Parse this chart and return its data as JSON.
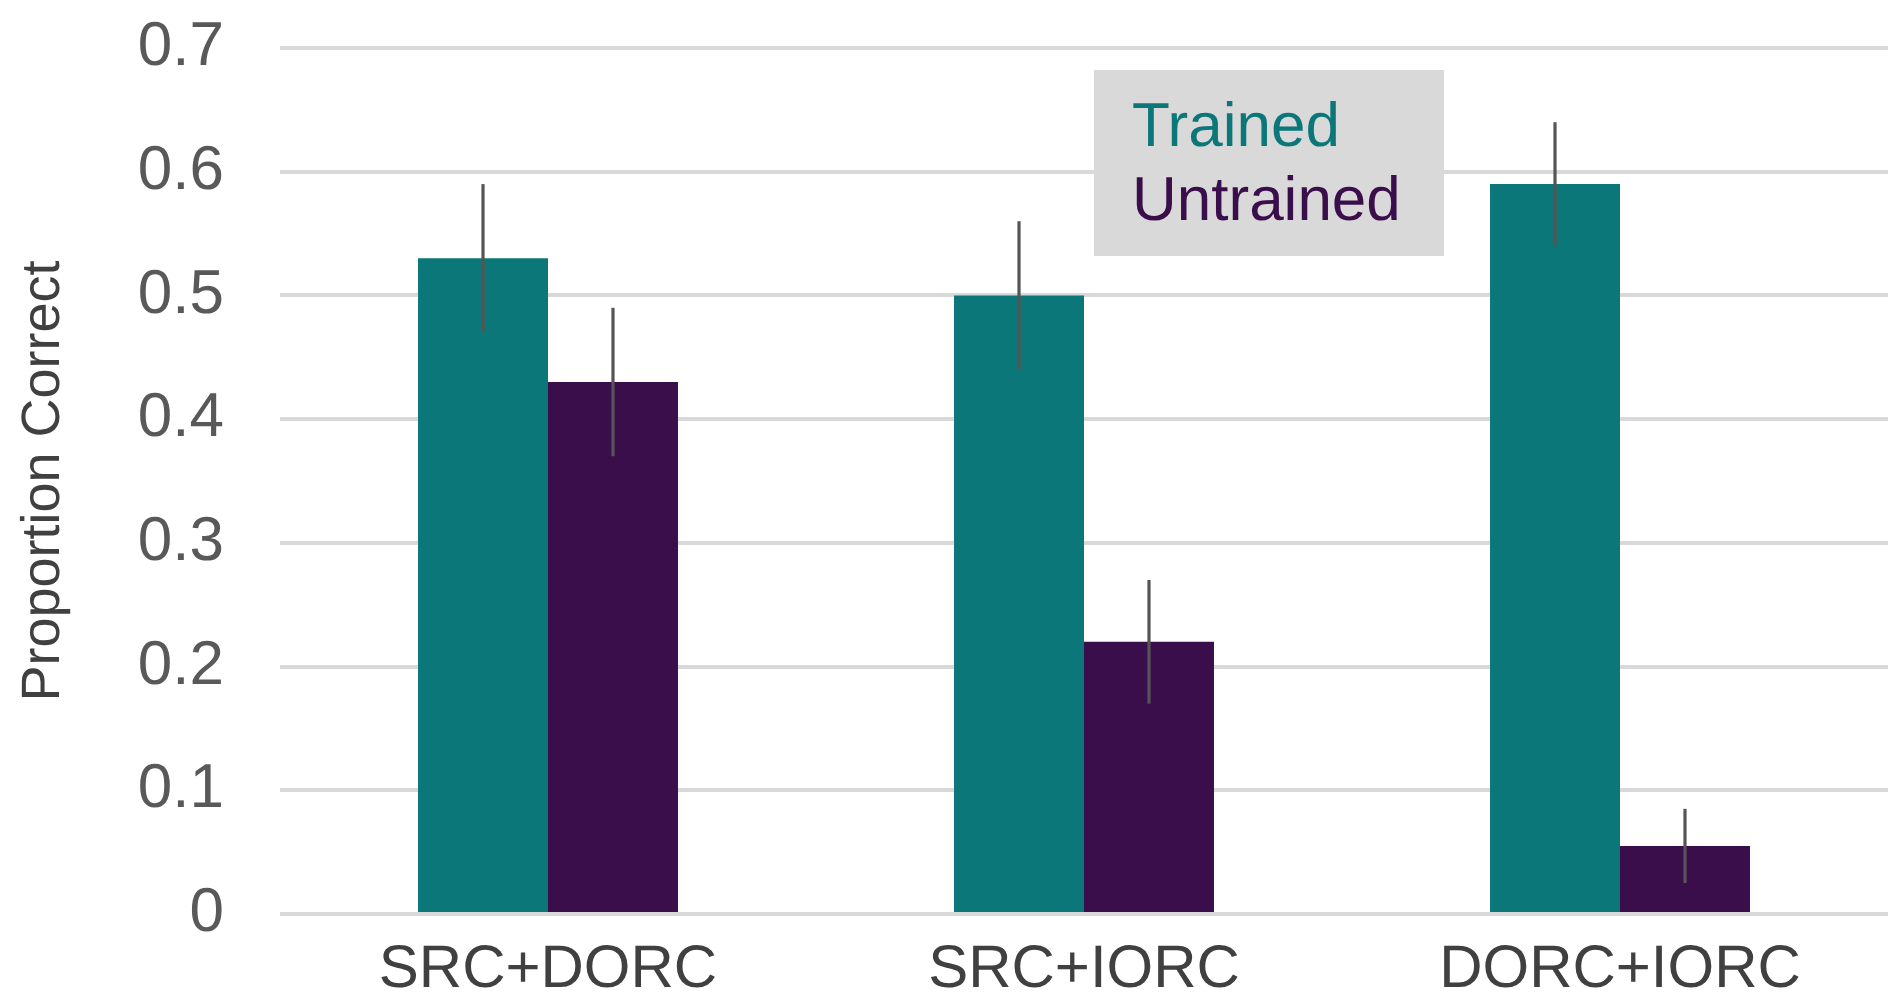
{
  "chart_data": {
    "type": "bar",
    "ylabel": "Proportion Correct",
    "categories": [
      "SRC+DORC",
      "SRC+IORC",
      "DORC+IORC"
    ],
    "series": [
      {
        "name": "Trained",
        "color": "#0b7779",
        "values": [
          0.53,
          0.5,
          0.59
        ],
        "errors": [
          0.06,
          0.06,
          0.05
        ]
      },
      {
        "name": "Untrained",
        "color": "#3a0d4b",
        "values": [
          0.43,
          0.22,
          0.055
        ],
        "errors": [
          0.06,
          0.05,
          0.03
        ]
      }
    ],
    "ylim": [
      0,
      0.7
    ],
    "yticks": [
      0,
      0.1,
      0.2,
      0.3,
      0.4,
      0.5,
      0.6,
      0.7
    ],
    "grid": "y",
    "legend": "top"
  }
}
